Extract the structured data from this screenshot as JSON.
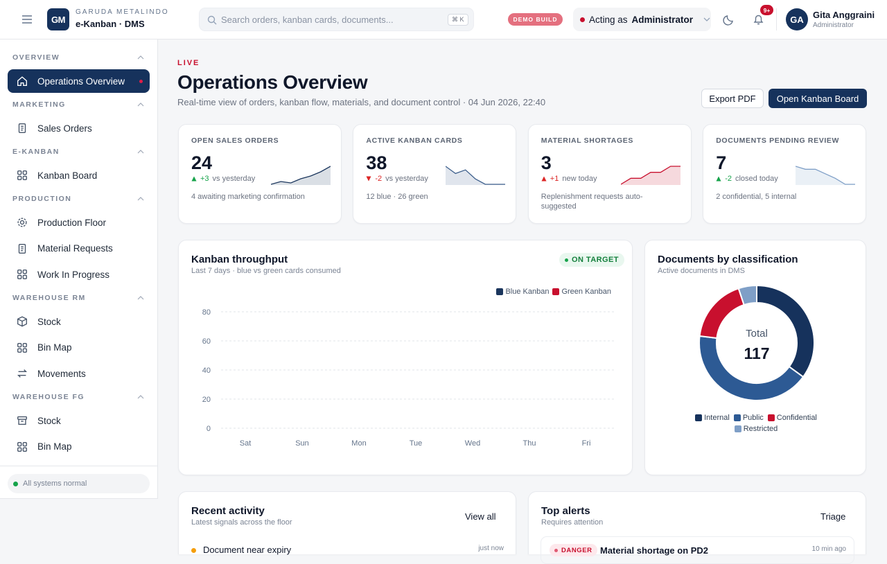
{
  "topbar": {
    "brand": {
      "initials": "GM",
      "company": "GARUDA METALINDO",
      "product": "e-Kanban · DMS"
    },
    "search": {
      "placeholder": "Search orders, kanban cards, documents...",
      "shortcut": "⌘ K"
    },
    "badge": "DEMO BUILD",
    "role": {
      "label": "Acting as",
      "value": "Administrator"
    },
    "notifications": "9+",
    "user": {
      "initials": "GA",
      "name": "Gita Anggraini",
      "role": "Administrator"
    }
  },
  "sidebar": {
    "sections": [
      {
        "title": "OVERVIEW",
        "items": [
          {
            "label": "Operations Overview",
            "active": true
          }
        ]
      },
      {
        "title": "MARKETING",
        "items": [
          {
            "label": "Sales Orders"
          }
        ]
      },
      {
        "title": "E-KANBAN",
        "items": [
          {
            "label": "Kanban Board"
          }
        ]
      },
      {
        "title": "PRODUCTION",
        "items": [
          {
            "label": "Production Floor"
          },
          {
            "label": "Material Requests"
          },
          {
            "label": "Work In Progress"
          }
        ]
      },
      {
        "title": "WAREHOUSE RM",
        "items": [
          {
            "label": "Stock"
          },
          {
            "label": "Bin Map"
          },
          {
            "label": "Movements"
          }
        ]
      },
      {
        "title": "WAREHOUSE FG",
        "items": [
          {
            "label": "Stock"
          },
          {
            "label": "Bin Map"
          }
        ]
      }
    ],
    "status": "All systems normal"
  },
  "header": {
    "eyebrow": "LIVE",
    "title": "Operations Overview",
    "subtitle": "Real-time view of orders, kanban flow, materials, and document control · 04 Jun 2026, 22:40",
    "actions": [
      "Export PDF",
      "Open Kanban Board"
    ]
  },
  "kpis": [
    {
      "label": "OPEN SALES ORDERS",
      "value": 24,
      "delta": "+3",
      "delta_text": "vs yesterday",
      "arrow": "up",
      "tone": "good",
      "note": "4 awaiting marketing confirmation",
      "trend": [
        2,
        4,
        3,
        6,
        8,
        11,
        15
      ],
      "trend_color": "#1b365d"
    },
    {
      "label": "ACTIVE KANBAN CARDS",
      "value": 38,
      "delta": "-2",
      "delta_text": "vs yesterday",
      "arrow": "down",
      "tone": "bad",
      "note": "12 blue · 26 green",
      "trend": [
        13,
        9,
        11,
        6,
        3,
        3,
        3
      ],
      "trend_color": "#3d5f8c"
    },
    {
      "label": "MATERIAL SHORTAGES",
      "value": 3,
      "delta": "+1",
      "delta_text": "new today",
      "arrow": "up",
      "tone": "bad",
      "note": "Replenishment requests auto-suggested",
      "trend": [
        0,
        4,
        4,
        8,
        8,
        12,
        12
      ],
      "trend_color": "#c8102e"
    },
    {
      "label": "DOCUMENTS PENDING REVIEW",
      "value": 7,
      "delta": "-2",
      "delta_text": "closed today",
      "arrow": "up",
      "tone": "good",
      "note": "2 confidential, 5 internal",
      "trend": [
        12,
        10,
        10,
        7,
        4,
        0,
        0
      ],
      "trend_color": "#7f9fc7"
    }
  ],
  "throughput": {
    "title": "Kanban throughput",
    "subtitle": "Last 7 days · blue vs green cards consumed",
    "badge": "ON TARGET",
    "chart_data": {
      "type": "bar",
      "categories": [
        "Sat",
        "Sun",
        "Mon",
        "Tue",
        "Wed",
        "Thu",
        "Fri"
      ],
      "series": [
        {
          "name": "Blue Kanban",
          "color": "#1b365d",
          "values": [
            0,
            0,
            0,
            0,
            0,
            0,
            0
          ]
        },
        {
          "name": "Green Kanban",
          "color": "#c8102e",
          "values": [
            0,
            0,
            0,
            0,
            0,
            0,
            0
          ]
        }
      ],
      "ylim": [
        0,
        80
      ],
      "yticks": [
        0,
        20,
        40,
        60,
        80
      ],
      "grid": true,
      "legend": "top-right"
    }
  },
  "documents": {
    "title": "Documents by classification",
    "subtitle": "Active documents in DMS",
    "chart_data": {
      "type": "pie",
      "categories": [
        "Internal",
        "Public",
        "Confidential",
        "Restricted"
      ],
      "values": [
        41,
        49,
        21,
        6
      ],
      "colors": [
        "#16325c",
        "#2d5a94",
        "#c8102e",
        "#7f9fc7"
      ],
      "center_label": "Total",
      "total": 117,
      "legend": "bottom"
    }
  },
  "activity": {
    "title": "Recent activity",
    "subtitle": "Latest signals across the floor",
    "action": "View all",
    "items": [
      {
        "title": "Document near expiry",
        "time": "just now"
      }
    ]
  },
  "alerts": {
    "title": "Top alerts",
    "subtitle": "Requires attention",
    "action": "Triage",
    "items": [
      {
        "level": "DANGER",
        "title": "Material shortage on PD2",
        "time": "10 min ago"
      }
    ]
  }
}
